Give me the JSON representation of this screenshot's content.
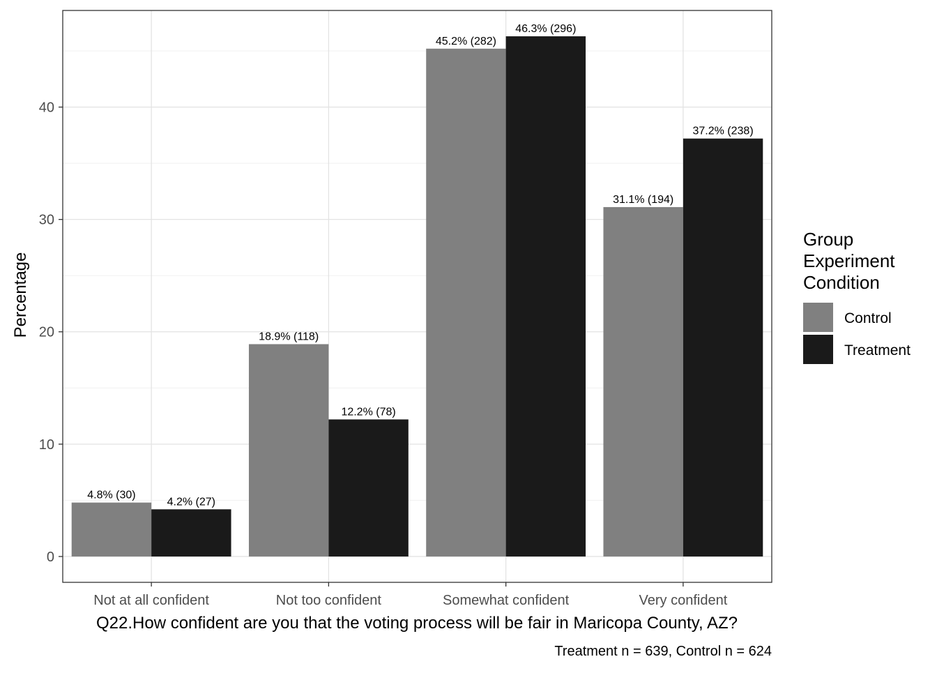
{
  "chart_data": {
    "type": "bar",
    "categories": [
      "Not at all confident",
      "Not too confident",
      "Somewhat confident",
      "Very confident"
    ],
    "series": [
      {
        "name": "Control",
        "color": "#808080",
        "values": [
          4.8,
          18.9,
          45.2,
          31.1
        ],
        "labels": [
          "4.8% (30)",
          "18.9% (118)",
          "45.2% (282)",
          "31.1% (194)"
        ]
      },
      {
        "name": "Treatment",
        "color": "#1a1a1a",
        "values": [
          4.2,
          12.2,
          46.3,
          37.2
        ],
        "labels": [
          "4.2% (27)",
          "12.2% (78)",
          "46.3% (296)",
          "37.2% (238)"
        ]
      }
    ],
    "xlabel": "Q22.How confident are you that the voting process will be fair in Maricopa County, AZ?",
    "ylabel": "Percentage",
    "ylim": [
      -2.3,
      48.6
    ],
    "yticks": [
      0,
      10,
      20,
      30,
      40
    ],
    "grid": true,
    "legend": {
      "title": [
        "Group",
        "Experiment",
        "Condition"
      ],
      "position": "right"
    },
    "caption": "Treatment n = 639, Control n = 624"
  }
}
